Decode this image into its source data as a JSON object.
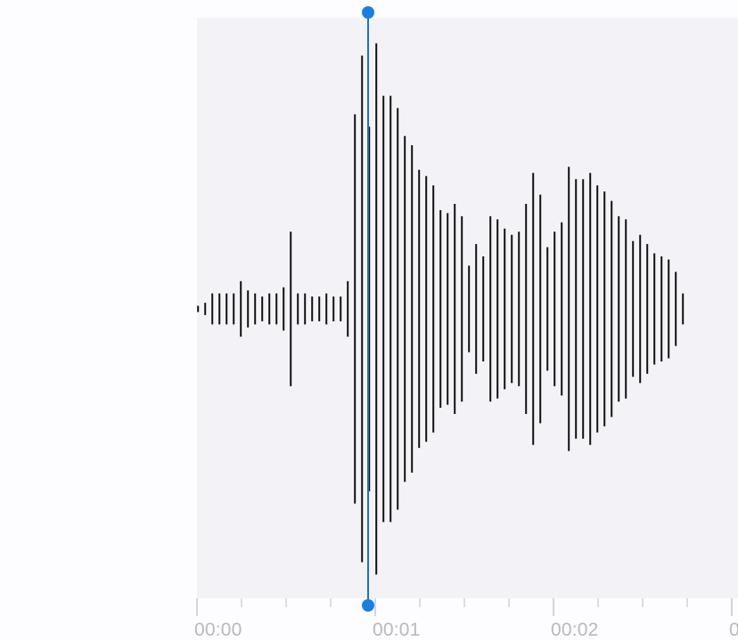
{
  "colors": {
    "background": "#fdfcfe",
    "waveform_bg": "#f3f2f7",
    "bars": "#111111",
    "playhead": "#1a7fe0",
    "playhead_line": "#1a73c8",
    "ticks": "#c8c8cd",
    "time_label": "#b8b8bd"
  },
  "playhead": {
    "position_seconds": 0.96
  },
  "timeline": {
    "labels": [
      {
        "text": "00:00",
        "seconds": 0
      },
      {
        "text": "00:01",
        "seconds": 1
      },
      {
        "text": "00:02",
        "seconds": 2
      },
      {
        "text": "0",
        "seconds": 3
      }
    ],
    "minor_ticks_per_second": 4
  },
  "waveform": {
    "bar_interval_seconds": 0.04,
    "amplitudes": [
      0.01,
      0.02,
      0.05,
      0.05,
      0.05,
      0.05,
      0.09,
      0.06,
      0.05,
      0.04,
      0.05,
      0.05,
      0.07,
      0.25,
      0.05,
      0.05,
      0.04,
      0.04,
      0.05,
      0.04,
      0.04,
      0.09,
      0.63,
      0.82,
      0.59,
      0.86,
      0.69,
      0.69,
      0.65,
      0.56,
      0.53,
      0.45,
      0.43,
      0.4,
      0.32,
      0.31,
      0.34,
      0.3,
      0.14,
      0.21,
      0.17,
      0.3,
      0.29,
      0.26,
      0.24,
      0.25,
      0.34,
      0.44,
      0.37,
      0.2,
      0.25,
      0.28,
      0.46,
      0.42,
      0.42,
      0.44,
      0.4,
      0.38,
      0.35,
      0.3,
      0.29,
      0.22,
      0.24,
      0.21,
      0.18,
      0.17,
      0.16,
      0.12,
      0.05
    ]
  }
}
